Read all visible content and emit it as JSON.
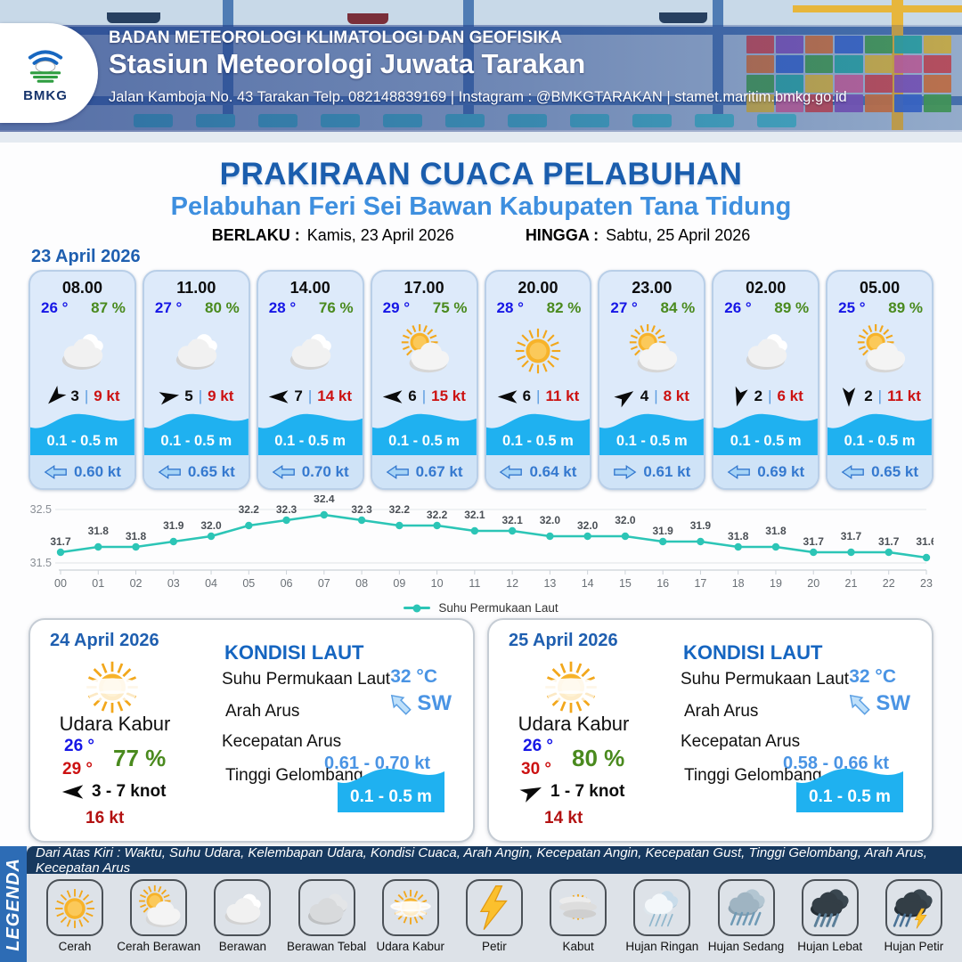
{
  "header": {
    "org": "BADAN METEOROLOGI KLIMATOLOGI DAN GEOFISIKA",
    "station": "Stasiun Meteorologi Juwata Tarakan",
    "address": "Jalan Kamboja No. 43 Tarakan  Telp. 082148839169 | Instagram : @BMKGTARAKAN | stamet.maritim.bmkg.go.id",
    "logo_label": "BMKG"
  },
  "title": {
    "main": "PRAKIRAAN CUACA PELABUHAN",
    "subtitle": "Pelabuhan Feri Sei Bawan Kabupaten Tana Tidung",
    "berlaku_label": "BERLAKU :",
    "berlaku_value": "Kamis, 23 April 2026",
    "hingga_label": "HINGGA :",
    "hingga_value": "Sabtu, 25 April 2026"
  },
  "hourly": {
    "date": "23 April 2026",
    "separator": "|",
    "cards": [
      {
        "time": "08.00",
        "temp": "26 °",
        "humidity": "87 %",
        "icon": "berawan",
        "wind_deg": 135,
        "wind_speed": "3",
        "gust": "9 kt",
        "wave": "0.1 - 0.5 m",
        "current_dir": "left",
        "current": "0.60 kt"
      },
      {
        "time": "11.00",
        "temp": "27 °",
        "humidity": "80 %",
        "icon": "berawan",
        "wind_deg": -10,
        "wind_speed": "5",
        "gust": "9 kt",
        "wave": "0.1 - 0.5 m",
        "current_dir": "left",
        "current": "0.65 kt"
      },
      {
        "time": "14.00",
        "temp": "28 °",
        "humidity": "76 %",
        "icon": "berawan",
        "wind_deg": 180,
        "wind_speed": "7",
        "gust": "14 kt",
        "wave": "0.1 - 0.5 m",
        "current_dir": "left",
        "current": "0.70 kt"
      },
      {
        "time": "17.00",
        "temp": "29 °",
        "humidity": "75 %",
        "icon": "cerah-berawan",
        "wind_deg": 180,
        "wind_speed": "6",
        "gust": "15 kt",
        "wave": "0.1 - 0.5 m",
        "current_dir": "left",
        "current": "0.67 kt"
      },
      {
        "time": "20.00",
        "temp": "28 °",
        "humidity": "82 %",
        "icon": "cerah",
        "wind_deg": 180,
        "wind_speed": "6",
        "gust": "11 kt",
        "wave": "0.1 - 0.5 m",
        "current_dir": "left",
        "current": "0.64 kt"
      },
      {
        "time": "23.00",
        "temp": "27 °",
        "humidity": "84 %",
        "icon": "cerah-berawan",
        "wind_deg": -35,
        "wind_speed": "4",
        "gust": "8 kt",
        "wave": "0.1 - 0.5 m",
        "current_dir": "right",
        "current": "0.61 kt"
      },
      {
        "time": "02.00",
        "temp": "26 °",
        "humidity": "89 %",
        "icon": "berawan",
        "wind_deg": 105,
        "wind_speed": "2",
        "gust": "6 kt",
        "wave": "0.1 - 0.5 m",
        "current_dir": "left",
        "current": "0.69 kt"
      },
      {
        "time": "05.00",
        "temp": "25 °",
        "humidity": "89 %",
        "icon": "cerah-berawan",
        "wind_deg": 90,
        "wind_speed": "2",
        "gust": "11 kt",
        "wave": "0.1 - 0.5 m",
        "current_dir": "left",
        "current": "0.65 kt"
      }
    ]
  },
  "chart_data": {
    "type": "line",
    "x": [
      "00",
      "01",
      "02",
      "03",
      "04",
      "05",
      "06",
      "07",
      "08",
      "09",
      "10",
      "11",
      "12",
      "13",
      "14",
      "15",
      "16",
      "17",
      "18",
      "19",
      "20",
      "21",
      "22",
      "23"
    ],
    "values": [
      31.7,
      31.8,
      31.8,
      31.9,
      32.0,
      32.2,
      32.3,
      32.4,
      32.3,
      32.2,
      32.2,
      32.1,
      32.1,
      32.0,
      32.0,
      32.0,
      31.9,
      31.9,
      31.8,
      31.8,
      31.7,
      31.7,
      31.7,
      31.6
    ],
    "series_name": "Suhu Permukaan Laut",
    "ylim": [
      31.5,
      32.5
    ],
    "ytick_labels": [
      "31.5",
      "32.5"
    ],
    "line_color": "#2cc5b6",
    "legend_position": "bottom-center",
    "grid": "horizontal-only"
  },
  "days": [
    {
      "date": "24 April 2026",
      "icon": "udara-kabur",
      "condition": "Udara Kabur",
      "temp_min": "26 °",
      "temp_max": "29 °",
      "humidity": "77 %",
      "wind_deg": 180,
      "wind_range": "3  - 7 knot",
      "gust": "16 kt",
      "sea": {
        "heading": "KONDISI LAUT",
        "sst_label": "Suhu Permukaan Laut",
        "sst": "32 °C",
        "arah_label": "Arah Arus",
        "arah": "SW",
        "kec_label": "Kecepatan Arus",
        "kec": "0.61 - 0.70 kt",
        "wave_label": "Tinggi Gelombang",
        "wave": "0.1 - 0.5 m"
      }
    },
    {
      "date": "25 April 2026",
      "icon": "udara-kabur",
      "condition": "Udara Kabur",
      "temp_min": "26 °",
      "temp_max": "30 °",
      "humidity": "80 %",
      "wind_deg": -25,
      "wind_range": "1  - 7 knot",
      "gust": "14 kt",
      "sea": {
        "heading": "KONDISI LAUT",
        "sst_label": "Suhu Permukaan Laut",
        "sst": "32 °C",
        "arah_label": "Arah Arus",
        "arah": "SW",
        "kec_label": "Kecepatan Arus",
        "kec": "0.58 - 0.66 kt",
        "wave_label": "Tinggi Gelombang",
        "wave": "0.1 - 0.5 m"
      }
    }
  ],
  "legend": {
    "band": "LEGENDA",
    "caption": "Dari Atas Kiri : Waktu, Suhu Udara, Kelembapan Udara, Kondisi Cuaca, Arah Angin, Kecepatan Angin, Kecepatan Gust, Tinggi Gelombang, Arah Arus, Kecepatan Arus",
    "items": [
      {
        "label": "Cerah",
        "icon": "cerah"
      },
      {
        "label": "Cerah Berawan",
        "icon": "cerah-berawan"
      },
      {
        "label": "Berawan",
        "icon": "berawan"
      },
      {
        "label": "Berawan Tebal",
        "icon": "berawan-tebal"
      },
      {
        "label": "Udara Kabur",
        "icon": "udara-kabur"
      },
      {
        "label": "Petir",
        "icon": "petir"
      },
      {
        "label": "Kabut",
        "icon": "kabut"
      },
      {
        "label": "Hujan Ringan",
        "icon": "hujan-ringan"
      },
      {
        "label": "Hujan Sedang",
        "icon": "hujan-sedang"
      },
      {
        "label": "Hujan Lebat",
        "icon": "hujan-lebat"
      },
      {
        "label": "Hujan Petir",
        "icon": "hujan-petir"
      }
    ]
  },
  "colors": {
    "title_blue": "#1a5dad",
    "subtitle_blue": "#3e8fdf",
    "temp_blue": "#1616e6",
    "humidity_green": "#4a8a1e",
    "gust_red": "#cc1212",
    "current_blue": "#3579cf",
    "wave_cyan": "#1fb1f0",
    "chart_teal": "#2cc5b6",
    "legend_navy": "#17395f",
    "legend_band_blue": "#2d6cb5",
    "card_bg": "#ddeafa"
  }
}
